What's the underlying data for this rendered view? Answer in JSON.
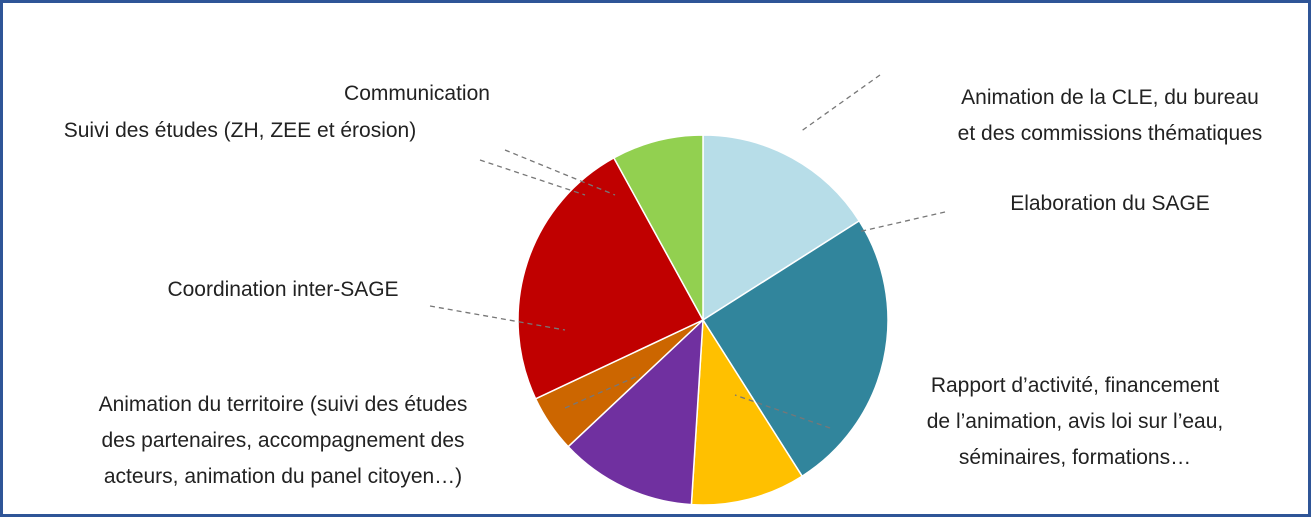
{
  "chart_data": {
    "type": "pie",
    "categories": [
      "Animation de la CLE, du bureau\net des commissions thématiques",
      "Elaboration du SAGE",
      "Rapport d’activité, financement\nde l’animation, avis loi sur l’eau,\nséminaires, formations…",
      "Animation du territoire (suivi des études\ndes partenaires, accompagnement des\nacteurs, animation du panel citoyen…)",
      "Coordination inter-SAGE",
      "Suivi des études (ZH, ZEE et érosion)",
      "Communication"
    ],
    "values": [
      16,
      25,
      10,
      12,
      5,
      24,
      8
    ],
    "colors": [
      "#b7dde8",
      "#31859c",
      "#ffc000",
      "#7030a0",
      "#cc6600",
      "#c00000",
      "#92d050"
    ]
  }
}
